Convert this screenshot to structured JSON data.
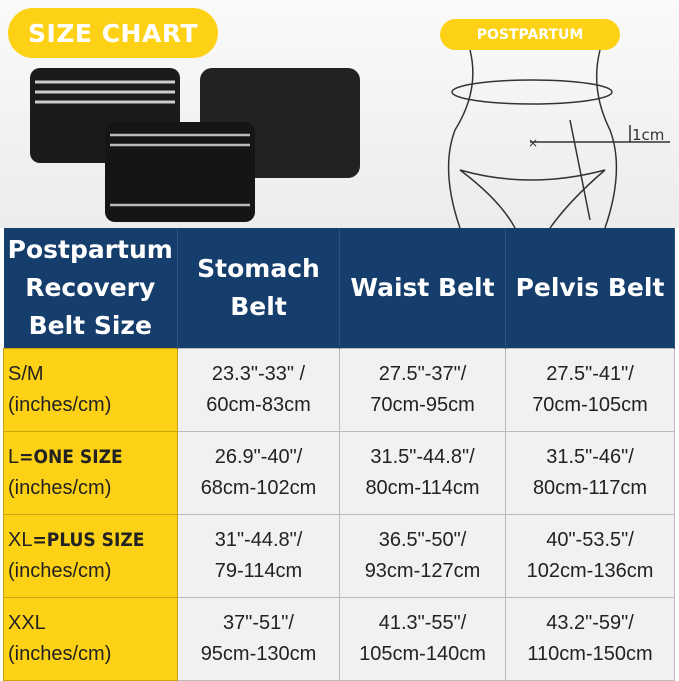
{
  "header": {
    "title": "SIZE CHART",
    "diagram_label": "POSTPARTUM",
    "measure_note": "1cm"
  },
  "colors": {
    "yellow": "#fcd116",
    "navy": "#163e6c"
  },
  "table": {
    "columns": [
      "Postpartum Recovery Belt Size",
      "Stomach Belt",
      "Waist Belt",
      "Pelvis Belt"
    ],
    "rows": [
      {
        "size": "S/M",
        "size_bold": "",
        "unit": "(inches/cm)",
        "stomach": [
          "23.3\"-33\" /",
          "60cm-83cm"
        ],
        "waist": [
          "27.5\"-37\"/",
          "70cm-95cm"
        ],
        "pelvis": [
          "27.5\"-41\"/",
          "70cm-105cm"
        ]
      },
      {
        "size": "L",
        "size_bold": "=ONE SIZE",
        "unit": "(inches/cm)",
        "stomach": [
          "26.9\"-40\"/",
          "68cm-102cm"
        ],
        "waist": [
          "31.5\"-44.8\"/",
          "80cm-114cm"
        ],
        "pelvis": [
          "31.5\"-46\"/",
          "80cm-117cm"
        ]
      },
      {
        "size": "XL",
        "size_bold": "=PLUS SIZE",
        "unit": "(inches/cm)",
        "stomach": [
          "31\"-44.8\"/",
          "79-114cm"
        ],
        "waist": [
          "36.5\"-50\"/",
          "93cm-127cm"
        ],
        "pelvis": [
          "40\"-53.5\"/",
          "102cm-136cm"
        ]
      },
      {
        "size": "XXL",
        "size_bold": "",
        "unit": "(inches/cm)",
        "stomach": [
          "37\"-51\"/",
          "95cm-130cm"
        ],
        "waist": [
          "41.3\"-55\"/",
          "105cm-140cm"
        ],
        "pelvis": [
          "43.2\"-59\"/",
          "110cm-150cm"
        ]
      }
    ]
  }
}
